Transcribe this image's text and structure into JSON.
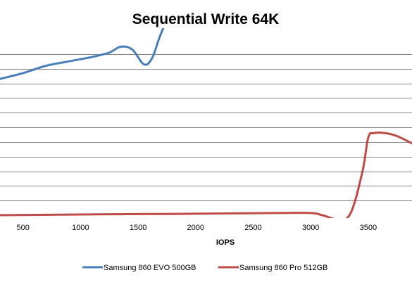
{
  "chart_data": {
    "type": "line",
    "title": "Sequential Write 64K",
    "xlabel": "IOPS",
    "ylabel": "",
    "xlim": [
      300,
      3880
    ],
    "ylim": [
      0,
      12
    ],
    "x_ticks": [
      500,
      1000,
      1500,
      2000,
      2500,
      3000,
      3500
    ],
    "x_tick_labels": [
      "500",
      "1000",
      "1500",
      "2000",
      "2500",
      "3000",
      "3500"
    ],
    "y_gridlines": [
      1,
      2,
      3,
      4,
      5,
      6,
      7,
      8,
      9,
      10,
      11
    ],
    "grid": true,
    "legend_position": "bottom",
    "series": [
      {
        "name": "Samsung 860 EVO 500GB",
        "color": "#4a7ebb",
        "points": [
          [
            300,
            9.3
          ],
          [
            500,
            9.7
          ],
          [
            700,
            10.2
          ],
          [
            900,
            10.5
          ],
          [
            1100,
            10.8
          ],
          [
            1250,
            11.1
          ],
          [
            1350,
            11.5
          ],
          [
            1450,
            11.3
          ],
          [
            1550,
            10.3
          ],
          [
            1620,
            10.7
          ],
          [
            1680,
            12.0
          ],
          [
            1730,
            13.0
          ]
        ]
      },
      {
        "name": "Samsung 860 Pro 512GB",
        "color": "#be4b48",
        "points": [
          [
            300,
            0.0
          ],
          [
            1000,
            0.05
          ],
          [
            2000,
            0.1
          ],
          [
            2700,
            0.15
          ],
          [
            3000,
            0.15
          ],
          [
            3100,
            0.0
          ],
          [
            3250,
            -0.3
          ],
          [
            3350,
            0.2
          ],
          [
            3450,
            3.0
          ],
          [
            3500,
            5.3
          ],
          [
            3550,
            5.6
          ],
          [
            3650,
            5.6
          ],
          [
            3750,
            5.4
          ],
          [
            3880,
            4.9
          ]
        ]
      }
    ]
  }
}
